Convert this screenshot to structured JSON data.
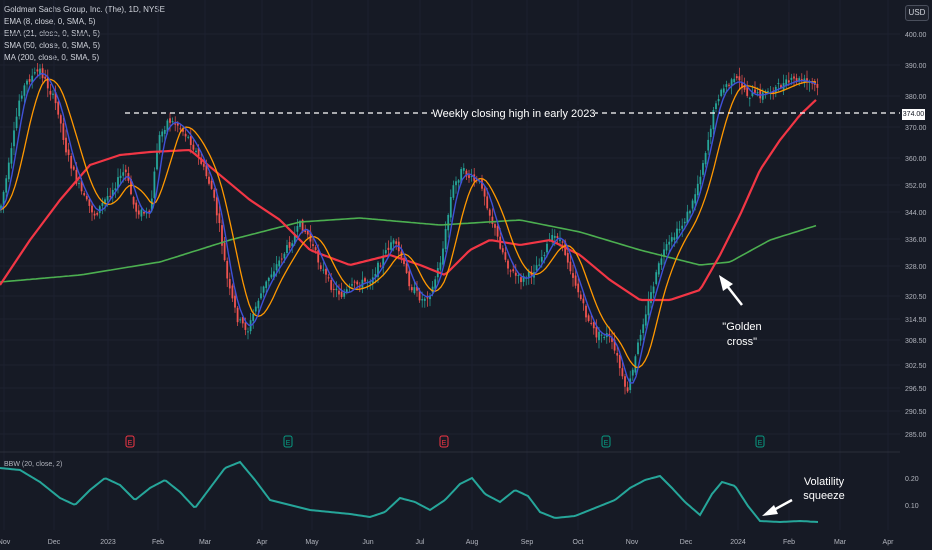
{
  "header": {
    "symbol": "Goldman Sachs Group, Inc. (The), 1D, NYSE",
    "indicators": [
      "EMA (8, close, 0, SMA, 5)",
      "EMA (21, close, 0, SMA, 5)",
      "SMA (50, close, 0, SMA, 5)",
      "MA (200, close, 0, SMA, 5)"
    ],
    "currency": "USD"
  },
  "price_axis": {
    "ticks": [
      "400.00",
      "390.00",
      "380.00",
      "370.00",
      "360.00",
      "352.00",
      "344.00",
      "336.00",
      "328.00",
      "320.50",
      "314.50",
      "308.50",
      "302.50",
      "296.50",
      "290.50",
      "285.00"
    ],
    "highlight": "374.00"
  },
  "bbw_axis": {
    "ticks": [
      "0.20",
      "0.10"
    ]
  },
  "time_axis": {
    "labels": [
      "Nov",
      "Dec",
      "2023",
      "Feb",
      "Mar",
      "Apr",
      "May",
      "Jun",
      "Jul",
      "Aug",
      "Sep",
      "Oct",
      "Nov",
      "Dec",
      "2024",
      "Feb",
      "Mar",
      "Apr"
    ]
  },
  "lower_pane": {
    "label": "BBW (20, close, 2)"
  },
  "earnings_markers": [
    {
      "label": "E",
      "color": "#f23645"
    },
    {
      "label": "E",
      "color": "#089981"
    },
    {
      "label": "E",
      "color": "#f23645"
    },
    {
      "label": "E",
      "color": "#089981"
    },
    {
      "label": "E",
      "color": "#089981"
    }
  ],
  "annotations": {
    "resistance": "Weekly closing high in early 2023",
    "golden_cross_line1": "\"Golden",
    "golden_cross_line2": "cross\"",
    "squeeze_line1": "Volatility",
    "squeeze_line2": "squeeze"
  },
  "colors": {
    "up": "#26a69a",
    "down": "#ef5350",
    "ema8": "#3f51d8",
    "ema21": "#ff9800",
    "sma50": "#f23645",
    "ma200": "#4caf50",
    "bbw": "#26a69a"
  }
}
